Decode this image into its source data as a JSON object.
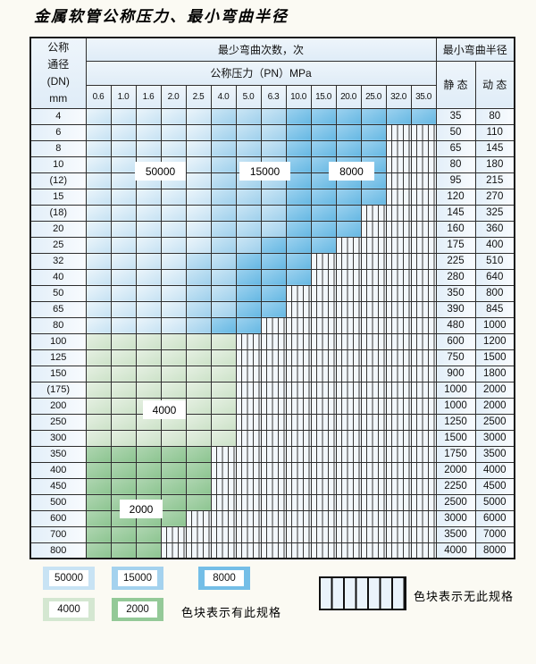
{
  "title": "金属软管公称压力、最小弯曲半径",
  "colors": {
    "cycles_50000": "#cbe4f5",
    "cycles_15000": "#a4d2ee",
    "cycles_8000": "#74bee7",
    "cycles_4000": "#d4e7d1",
    "cycles_2000": "#94c998",
    "no_spec_cell": "#f2f7fb",
    "grid_line": "#2e2e2e",
    "header_bg": "#e7f1fa",
    "page_bg": "#fbfaf3"
  },
  "table": {
    "dn_header_lines": [
      "公称",
      "通径",
      "(DN)",
      "mm"
    ],
    "cycles_header": "最少弯曲次数，次",
    "pressure_header": "公称压力（PN）MPa",
    "radius_header": "最小弯曲半径",
    "static_header": "静 态",
    "dynamic_header": "动 态",
    "pressure_columns": [
      "0.6",
      "1.0",
      "1.6",
      "2.0",
      "2.5",
      "4.0",
      "5.0",
      "6.3",
      "10.0",
      "15.0",
      "20.0",
      "25.0",
      "32.0",
      "35.0"
    ],
    "rows": [
      {
        "dn": "4",
        "cycles": [
          "50000",
          "50000",
          "50000",
          "50000",
          "50000",
          "15000",
          "15000",
          "15000",
          "8000",
          "8000",
          "8000",
          "8000",
          "8000",
          "8000"
        ],
        "static": "35",
        "dynamic": "80"
      },
      {
        "dn": "6",
        "cycles": [
          "50000",
          "50000",
          "50000",
          "50000",
          "50000",
          "15000",
          "15000",
          "15000",
          "8000",
          "8000",
          "8000",
          "8000",
          null,
          null
        ],
        "static": "50",
        "dynamic": "110"
      },
      {
        "dn": "8",
        "cycles": [
          "50000",
          "50000",
          "50000",
          "50000",
          "50000",
          "15000",
          "15000",
          "15000",
          "8000",
          "8000",
          "8000",
          "8000",
          null,
          null
        ],
        "static": "65",
        "dynamic": "145"
      },
      {
        "dn": "10",
        "cycles": [
          "50000",
          "50000",
          "50000",
          "50000",
          "50000",
          "15000",
          "15000",
          "15000",
          "8000",
          "8000",
          "8000",
          "8000",
          null,
          null
        ],
        "static": "80",
        "dynamic": "180"
      },
      {
        "dn": "(12)",
        "cycles": [
          "50000",
          "50000",
          "50000",
          "50000",
          "50000",
          "15000",
          "15000",
          "15000",
          "8000",
          "8000",
          "8000",
          "8000",
          null,
          null
        ],
        "static": "95",
        "dynamic": "215"
      },
      {
        "dn": "15",
        "cycles": [
          "50000",
          "50000",
          "50000",
          "50000",
          "50000",
          "15000",
          "15000",
          "15000",
          "8000",
          "8000",
          "8000",
          "8000",
          null,
          null
        ],
        "static": "120",
        "dynamic": "270"
      },
      {
        "dn": "(18)",
        "cycles": [
          "50000",
          "50000",
          "50000",
          "50000",
          "50000",
          "15000",
          "15000",
          "15000",
          "8000",
          "8000",
          "8000",
          null,
          null,
          null
        ],
        "static": "145",
        "dynamic": "325"
      },
      {
        "dn": "20",
        "cycles": [
          "50000",
          "50000",
          "50000",
          "50000",
          "50000",
          "15000",
          "15000",
          "15000",
          "8000",
          "8000",
          "8000",
          null,
          null,
          null
        ],
        "static": "160",
        "dynamic": "360"
      },
      {
        "dn": "25",
        "cycles": [
          "50000",
          "50000",
          "50000",
          "50000",
          "50000",
          "15000",
          "15000",
          "8000",
          "8000",
          "8000",
          null,
          null,
          null,
          null
        ],
        "static": "175",
        "dynamic": "400"
      },
      {
        "dn": "32",
        "cycles": [
          "50000",
          "50000",
          "50000",
          "50000",
          "15000",
          "15000",
          "8000",
          "8000",
          "8000",
          null,
          null,
          null,
          null,
          null
        ],
        "static": "225",
        "dynamic": "510"
      },
      {
        "dn": "40",
        "cycles": [
          "50000",
          "50000",
          "50000",
          "50000",
          "15000",
          "15000",
          "8000",
          "8000",
          "8000",
          null,
          null,
          null,
          null,
          null
        ],
        "static": "280",
        "dynamic": "640"
      },
      {
        "dn": "50",
        "cycles": [
          "50000",
          "50000",
          "50000",
          "50000",
          "15000",
          "15000",
          "8000",
          "8000",
          null,
          null,
          null,
          null,
          null,
          null
        ],
        "static": "350",
        "dynamic": "800"
      },
      {
        "dn": "65",
        "cycles": [
          "50000",
          "50000",
          "50000",
          "50000",
          "15000",
          "15000",
          "8000",
          "8000",
          null,
          null,
          null,
          null,
          null,
          null
        ],
        "static": "390",
        "dynamic": "845"
      },
      {
        "dn": "80",
        "cycles": [
          "50000",
          "50000",
          "50000",
          "50000",
          "15000",
          "8000",
          "8000",
          null,
          null,
          null,
          null,
          null,
          null,
          null
        ],
        "static": "480",
        "dynamic": "1000"
      },
      {
        "dn": "100",
        "cycles": [
          "4000",
          "4000",
          "4000",
          "4000",
          "4000",
          "4000",
          null,
          null,
          null,
          null,
          null,
          null,
          null,
          null
        ],
        "static": "600",
        "dynamic": "1200"
      },
      {
        "dn": "125",
        "cycles": [
          "4000",
          "4000",
          "4000",
          "4000",
          "4000",
          "4000",
          null,
          null,
          null,
          null,
          null,
          null,
          null,
          null
        ],
        "static": "750",
        "dynamic": "1500"
      },
      {
        "dn": "150",
        "cycles": [
          "4000",
          "4000",
          "4000",
          "4000",
          "4000",
          "4000",
          null,
          null,
          null,
          null,
          null,
          null,
          null,
          null
        ],
        "static": "900",
        "dynamic": "1800"
      },
      {
        "dn": "(175)",
        "cycles": [
          "4000",
          "4000",
          "4000",
          "4000",
          "4000",
          "4000",
          null,
          null,
          null,
          null,
          null,
          null,
          null,
          null
        ],
        "static": "1000",
        "dynamic": "2000"
      },
      {
        "dn": "200",
        "cycles": [
          "4000",
          "4000",
          "4000",
          "4000",
          "4000",
          "4000",
          null,
          null,
          null,
          null,
          null,
          null,
          null,
          null
        ],
        "static": "1000",
        "dynamic": "2000"
      },
      {
        "dn": "250",
        "cycles": [
          "4000",
          "4000",
          "4000",
          "4000",
          "4000",
          "4000",
          null,
          null,
          null,
          null,
          null,
          null,
          null,
          null
        ],
        "static": "1250",
        "dynamic": "2500"
      },
      {
        "dn": "300",
        "cycles": [
          "4000",
          "4000",
          "4000",
          "4000",
          "4000",
          "4000",
          null,
          null,
          null,
          null,
          null,
          null,
          null,
          null
        ],
        "static": "1500",
        "dynamic": "3000"
      },
      {
        "dn": "350",
        "cycles": [
          "2000",
          "2000",
          "2000",
          "2000",
          "2000",
          null,
          null,
          null,
          null,
          null,
          null,
          null,
          null,
          null
        ],
        "static": "1750",
        "dynamic": "3500"
      },
      {
        "dn": "400",
        "cycles": [
          "2000",
          "2000",
          "2000",
          "2000",
          "2000",
          null,
          null,
          null,
          null,
          null,
          null,
          null,
          null,
          null
        ],
        "static": "2000",
        "dynamic": "4000"
      },
      {
        "dn": "450",
        "cycles": [
          "2000",
          "2000",
          "2000",
          "2000",
          "2000",
          null,
          null,
          null,
          null,
          null,
          null,
          null,
          null,
          null
        ],
        "static": "2250",
        "dynamic": "4500"
      },
      {
        "dn": "500",
        "cycles": [
          "2000",
          "2000",
          "2000",
          "2000",
          "2000",
          null,
          null,
          null,
          null,
          null,
          null,
          null,
          null,
          null
        ],
        "static": "2500",
        "dynamic": "5000"
      },
      {
        "dn": "600",
        "cycles": [
          "2000",
          "2000",
          "2000",
          "2000",
          null,
          null,
          null,
          null,
          null,
          null,
          null,
          null,
          null,
          null
        ],
        "static": "3000",
        "dynamic": "6000"
      },
      {
        "dn": "700",
        "cycles": [
          "2000",
          "2000",
          "2000",
          null,
          null,
          null,
          null,
          null,
          null,
          null,
          null,
          null,
          null,
          null
        ],
        "static": "3500",
        "dynamic": "7000"
      },
      {
        "dn": "800",
        "cycles": [
          "2000",
          "2000",
          "2000",
          null,
          null,
          null,
          null,
          null,
          null,
          null,
          null,
          null,
          null,
          null
        ],
        "static": "4000",
        "dynamic": "8000"
      }
    ]
  },
  "overlay_labels": [
    {
      "text": "50000"
    },
    {
      "text": "15000"
    },
    {
      "text": "8000"
    },
    {
      "text": "4000"
    },
    {
      "text": "2000"
    }
  ],
  "legend": {
    "swatches": [
      {
        "label": "50000",
        "cycles": "50000"
      },
      {
        "label": "15000",
        "cycles": "15000"
      },
      {
        "label": "8000",
        "cycles": "8000"
      },
      {
        "label": "4000",
        "cycles": "4000"
      },
      {
        "label": "2000",
        "cycles": "2000"
      }
    ],
    "has_spec_note": "色块表示有此规格",
    "no_spec_note": "色块表示无此规格"
  }
}
